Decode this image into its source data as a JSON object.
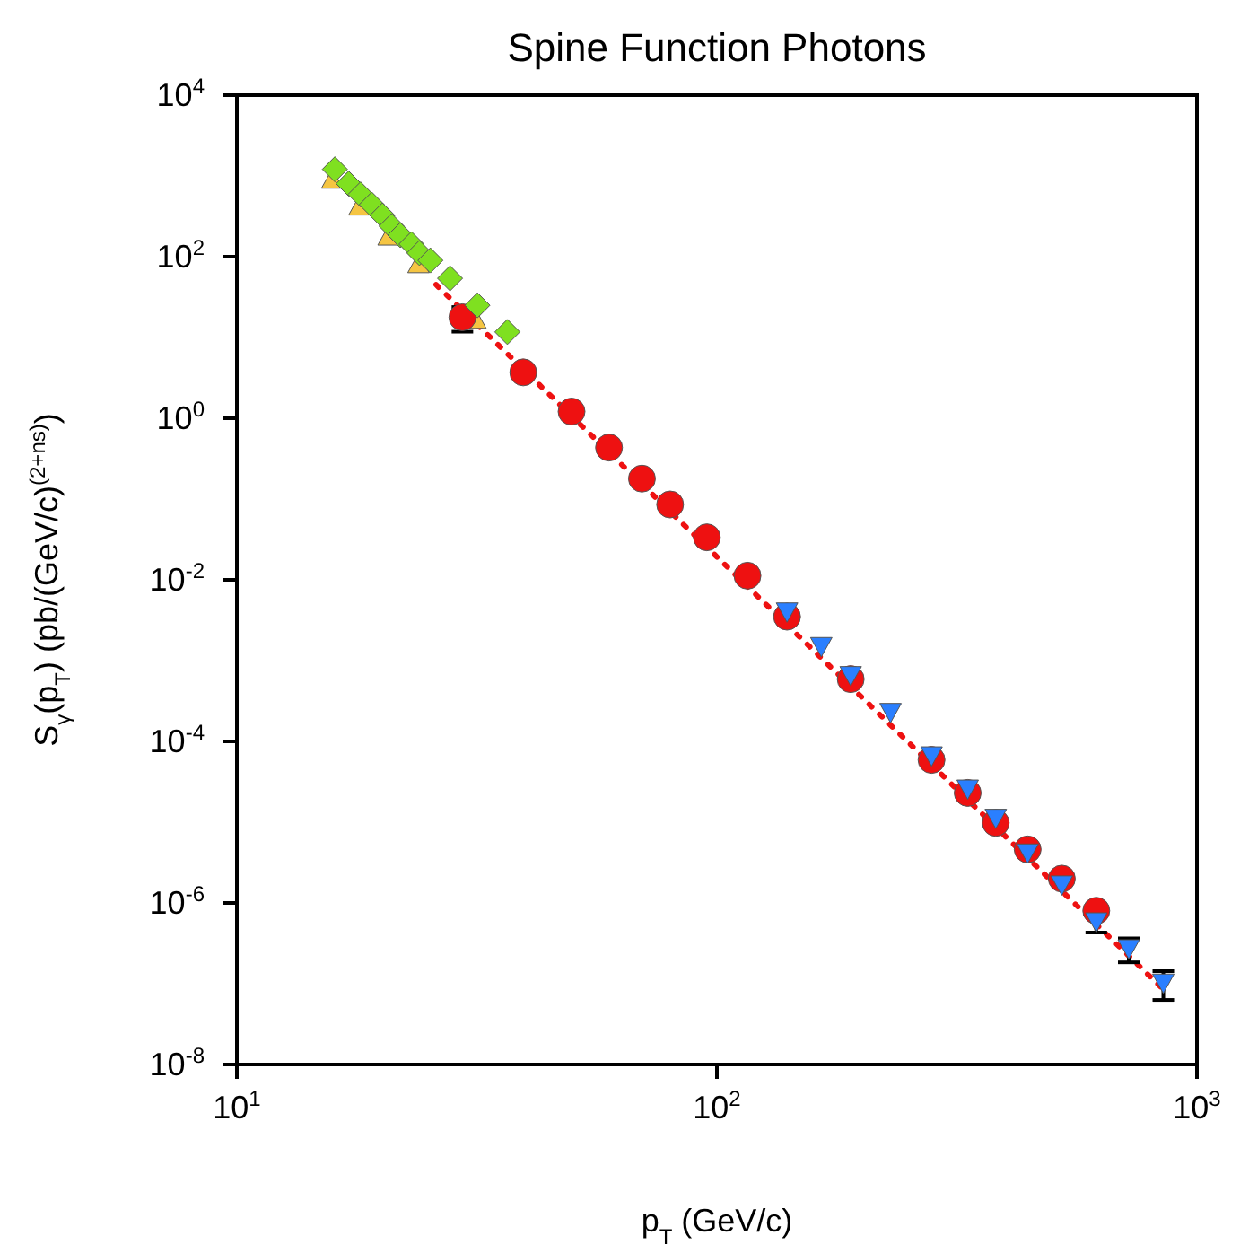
{
  "chart_data": {
    "type": "scatter",
    "title": "Spine Function Photons",
    "xlabel": "p$_{T}$ (GeV/c)",
    "ylabel": "S$_{γ}$(p$_{T}$) (pb/(GeV/c)$^{(2+ns)}$)",
    "log": "xy",
    "xlim": [
      10,
      1000
    ],
    "ylim": [
      1e-08,
      10000
    ],
    "xticks": [
      {
        "value": 10,
        "label": "10$^{1}$"
      },
      {
        "value": 100,
        "label": "10$^{2}$"
      },
      {
        "value": 1000,
        "label": "10$^{3}$"
      }
    ],
    "yticks": [
      {
        "value": 1e-08,
        "label": "10$^{-8}$"
      },
      {
        "value": 1e-06,
        "label": "10$^{-6}$"
      },
      {
        "value": 0.0001,
        "label": "10$^{-4}$"
      },
      {
        "value": 0.01,
        "label": "10$^{-2}$"
      },
      {
        "value": 1,
        "label": "10$^{0}$"
      },
      {
        "value": 100,
        "label": "10$^{2}$"
      },
      {
        "value": 10000,
        "label": "10$^{4}$"
      }
    ],
    "series": [
      {
        "type": "line",
        "color": "#ee1111",
        "line_style": "dotted",
        "marker": "none",
        "x": [
          26,
          870
        ],
        "values": [
          45,
          7.5e-08
        ]
      },
      {
        "color": "#f5c542",
        "marker": "triangle",
        "x": [
          15.8,
          18.0,
          20.7,
          23.9,
          31.4
        ],
        "values": [
          900,
          419,
          178,
          81,
          16.6
        ]
      },
      {
        "color": "#ee1111",
        "marker": "circle",
        "x": [
          29.5,
          39.5,
          49.8,
          59.6,
          69.8,
          79.9,
          95.3,
          115.8,
          140,
          190,
          280,
          333,
          381,
          444,
          523,
          617
        ],
        "values": [
          17.8,
          3.7,
          1.21,
          0.434,
          0.179,
          0.0857,
          0.0336,
          0.01125,
          0.0035,
          0.00059,
          5.9e-05,
          2.3e-05,
          9.8e-06,
          4.6e-06,
          2e-06,
          8e-07
        ],
        "errors": [
          6,
          null,
          null,
          null,
          null,
          null,
          null,
          null,
          null,
          null,
          null,
          null,
          null,
          null,
          null,
          null
        ]
      },
      {
        "color": "#2a7fff",
        "marker": "triangle-down",
        "x": [
          140,
          165,
          190,
          230,
          280,
          333,
          381,
          444,
          523,
          617,
          721,
          851
        ],
        "values": [
          0.00405,
          0.00151,
          0.00066,
          0.000231,
          6.7e-05,
          2.6e-05,
          1.13e-05,
          4.2e-06,
          1.69e-06,
          5.9e-07,
          2.74e-07,
          1.03e-07
        ],
        "errors": [
          null,
          null,
          null,
          null,
          null,
          null,
          null,
          null,
          null,
          1.6e-07,
          9e-08,
          4e-08
        ]
      },
      {
        "color": "#7fe020",
        "marker": "diamond",
        "x": [
          16.0,
          17.1,
          18.1,
          19.1,
          20.1,
          21.0,
          21.9,
          23.1,
          24.0,
          25.3,
          27.8,
          31.7,
          36.6
        ],
        "values": [
          1208,
          802,
          590,
          441,
          324,
          239,
          185,
          143,
          111,
          90,
          54,
          25,
          11.7
        ]
      }
    ]
  }
}
